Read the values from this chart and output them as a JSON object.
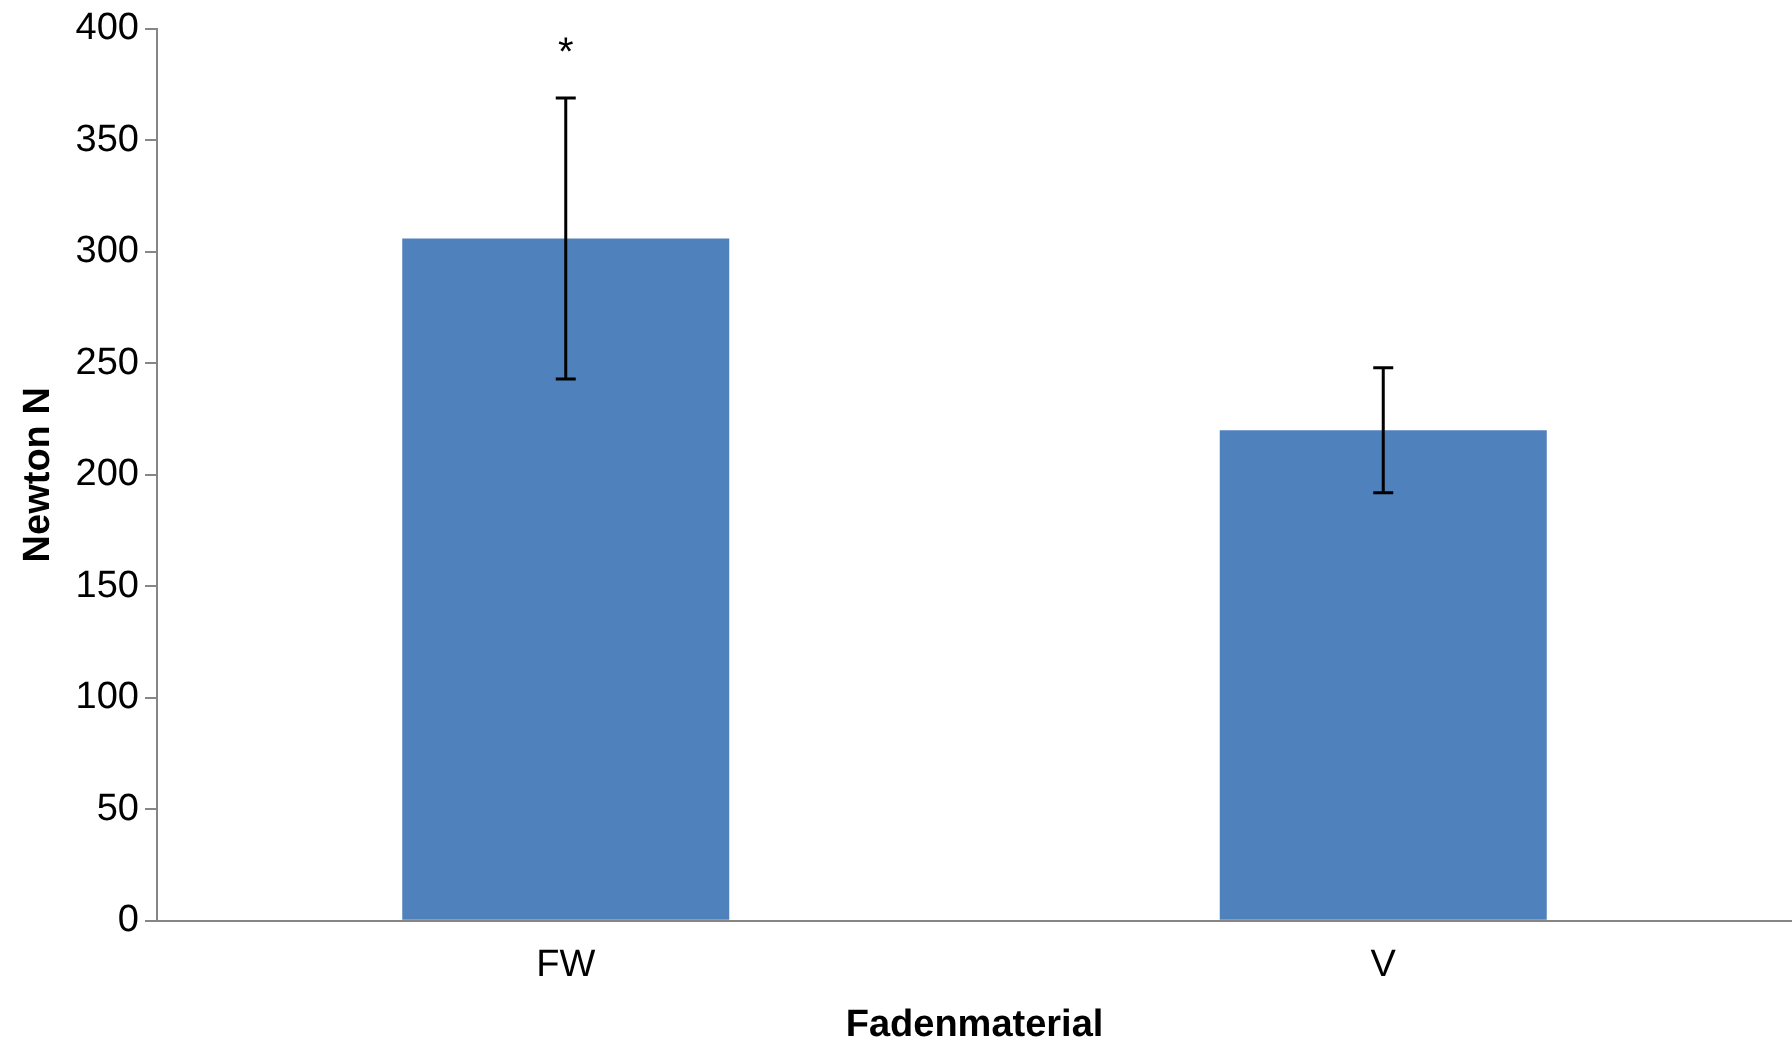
{
  "chart_data": {
    "type": "bar",
    "xlabel": "Fadenmaterial",
    "ylabel": "Newton N",
    "categories": [
      "FW",
      "V"
    ],
    "values": [
      306,
      220
    ],
    "errors": [
      63,
      28
    ],
    "color": "#4f81bd",
    "ylim": [
      0,
      400
    ],
    "yticks": [
      0,
      50,
      100,
      150,
      200,
      250,
      300,
      350,
      400
    ],
    "grid": false,
    "legend": false,
    "annotations": [
      "*"
    ]
  }
}
